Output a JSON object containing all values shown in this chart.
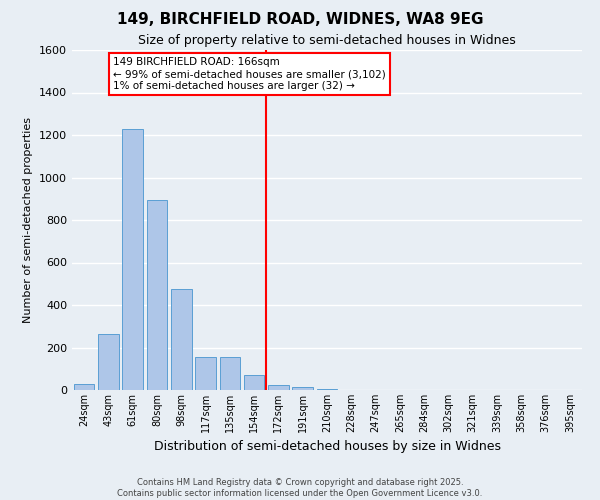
{
  "title": "149, BIRCHFIELD ROAD, WIDNES, WA8 9EG",
  "subtitle": "Size of property relative to semi-detached houses in Widnes",
  "xlabel": "Distribution of semi-detached houses by size in Widnes",
  "ylabel": "Number of semi-detached properties",
  "categories": [
    "24sqm",
    "43sqm",
    "61sqm",
    "80sqm",
    "98sqm",
    "117sqm",
    "135sqm",
    "154sqm",
    "172sqm",
    "191sqm",
    "210sqm",
    "228sqm",
    "247sqm",
    "265sqm",
    "284sqm",
    "302sqm",
    "321sqm",
    "339sqm",
    "358sqm",
    "376sqm",
    "395sqm"
  ],
  "values": [
    30,
    265,
    1230,
    895,
    475,
    155,
    155,
    70,
    25,
    15,
    5,
    0,
    0,
    0,
    0,
    0,
    0,
    0,
    0,
    0,
    0
  ],
  "bar_color": "#aec6e8",
  "bar_edge_color": "#5a9fd4",
  "background_color": "#e8eef4",
  "grid_color": "#ffffff",
  "red_line_index": 8,
  "annotation_title": "149 BIRCHFIELD ROAD: 166sqm",
  "annotation_line1": "← 99% of semi-detached houses are smaller (3,102)",
  "annotation_line2": "1% of semi-detached houses are larger (32) →",
  "ylim": [
    0,
    1600
  ],
  "yticks": [
    0,
    200,
    400,
    600,
    800,
    1000,
    1200,
    1400,
    1600
  ],
  "footer_line1": "Contains HM Land Registry data © Crown copyright and database right 2025.",
  "footer_line2": "Contains public sector information licensed under the Open Government Licence v3.0."
}
